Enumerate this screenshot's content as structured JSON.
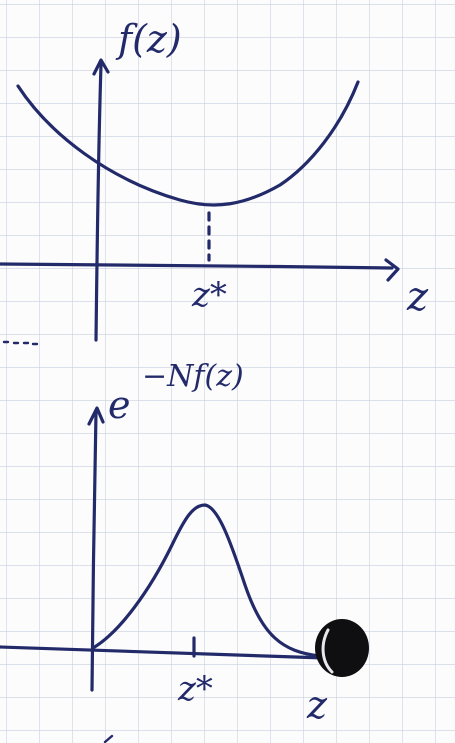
{
  "top_plot": {
    "y_label": "f(z)",
    "x_label": "z",
    "min_label": "z*"
  },
  "bottom_plot": {
    "y_label_base": "e",
    "y_label_exponent": "−Nf(z)",
    "x_label": "z",
    "peak_label": "z*"
  },
  "colors": {
    "ink": "#232a6a",
    "grid": "#c9cfdd",
    "paper": "#fcfcfd"
  }
}
